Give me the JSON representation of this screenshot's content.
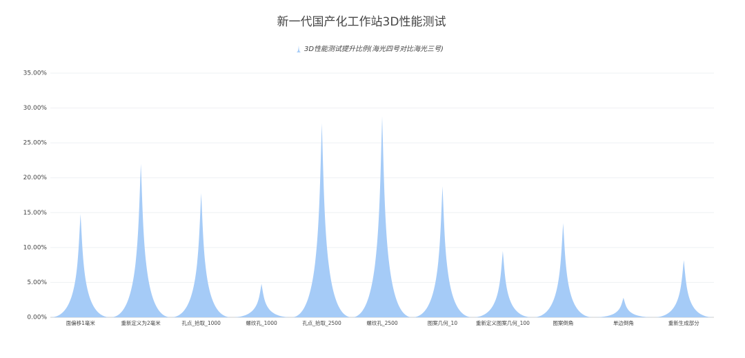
{
  "chart_data": {
    "type": "spike-bar",
    "title": "新一代国产化工作站3D性能测试",
    "categories": [
      "面偏移1毫米",
      "重新定义为2毫米",
      "孔点_拾取_1000",
      "螺纹孔_1000",
      "孔点_拾取_2500",
      "螺纹孔_2500",
      "图案几何_10",
      "重新定义图案几何_100",
      "图案倒角",
      "单边倒角",
      "重新生成部分"
    ],
    "series": [
      {
        "name": "3D性能测试提升比例(海光四号对比海光三号)",
        "color": "#a5cbf7",
        "values": [
          14.8,
          22.0,
          17.8,
          4.8,
          27.8,
          28.8,
          18.8,
          9.5,
          13.5,
          2.8,
          8.2
        ]
      }
    ],
    "ylim": [
      0,
      35
    ],
    "yticks": [
      {
        "value": 0,
        "label": "0.00%"
      },
      {
        "value": 5,
        "label": "5.00%"
      },
      {
        "value": 10,
        "label": "10.00%"
      },
      {
        "value": 15,
        "label": "15.00%"
      },
      {
        "value": 20,
        "label": "20.00%"
      },
      {
        "value": 25,
        "label": "25.00%"
      },
      {
        "value": 30,
        "label": "30.00%"
      },
      {
        "value": 35,
        "label": "35.00%"
      }
    ],
    "grid": true
  }
}
